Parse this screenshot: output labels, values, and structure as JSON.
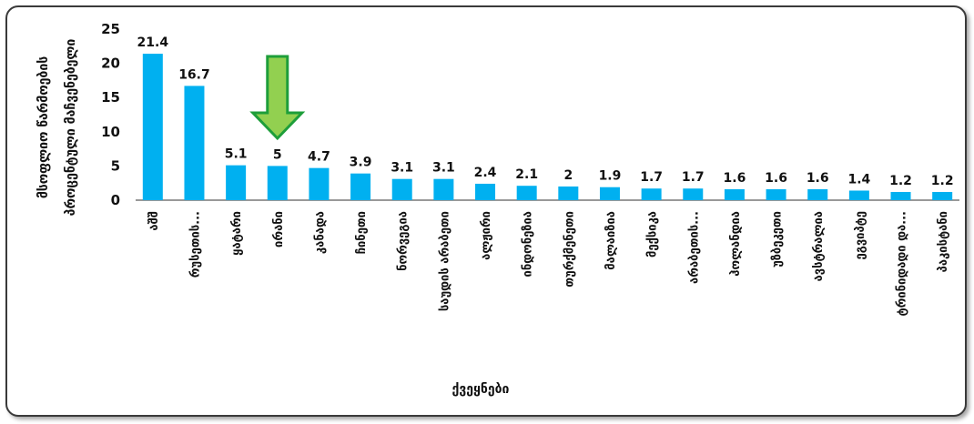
{
  "chart_data": {
    "type": "bar",
    "categories": [
      "აშშ",
      "რუსეთის...",
      "ყატარი",
      "ირანი",
      "კანადა",
      "ჩინეთი",
      "ნორვეგია",
      "საუდის არაბეთი",
      "ალჟირი",
      "ინდონეზია",
      "თურქმენეთი",
      "მალაიზია",
      "მექსიკა",
      "არაბეთის...",
      "ჰოლანდია",
      "უზბეკეთი",
      "ავსტრალია",
      "ეგვიპტე",
      "ტრინიდადი და...",
      "პაკისტანი"
    ],
    "values": [
      21.4,
      16.7,
      5.1,
      5,
      4.7,
      3.9,
      3.1,
      3.1,
      2.4,
      2.1,
      2,
      1.9,
      1.7,
      1.7,
      1.6,
      1.6,
      1.6,
      1.4,
      1.2,
      1.2
    ],
    "value_labels": [
      "21.4",
      "16.7",
      "5.1",
      "5",
      "4.7",
      "3.9",
      "3.1",
      "3.1",
      "2.4",
      "2.1",
      "2",
      "1.9",
      "1.7",
      "1.7",
      "1.6",
      "1.6",
      "1.6",
      "1.4",
      "1.2",
      "1.2"
    ],
    "title": "",
    "xlabel": "ქვეყნები",
    "ylabel_lines": [
      "მსოფლიო წარმოების",
      "პროცენტული მაჩვენებელი"
    ],
    "ylim": [
      0,
      25
    ],
    "yticks": [
      "0",
      "5",
      "10",
      "15",
      "20",
      "25"
    ],
    "grid": false,
    "legend": "none",
    "highlight_index": 3,
    "colors": {
      "bar": "#00B0F0",
      "arrow_fill": "#92D050",
      "arrow_stroke": "#1E9E3A",
      "axis": "#333333"
    }
  }
}
